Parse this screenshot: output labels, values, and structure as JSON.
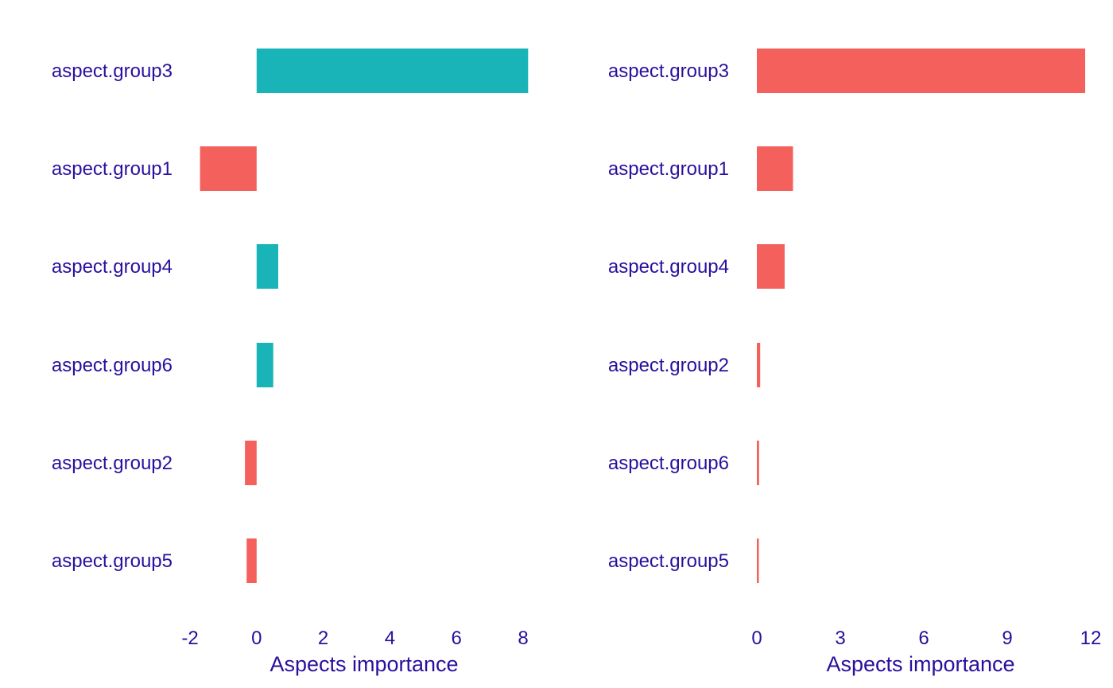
{
  "text_color": "#2a0f9e",
  "chart_data": [
    {
      "type": "bar",
      "orientation": "horizontal",
      "categories": [
        "aspect.group3",
        "aspect.group1",
        "aspect.group4",
        "aspect.group6",
        "aspect.group2",
        "aspect.group5"
      ],
      "values": [
        8.15,
        -1.7,
        0.65,
        0.5,
        -0.35,
        -0.3
      ],
      "xlabel": "Aspects importance",
      "ylabel": "",
      "xlim": [
        -2,
        8.4
      ],
      "xticks": [
        "-2",
        "0",
        "2",
        "4",
        "6",
        "8"
      ],
      "grid": false,
      "legend": "none",
      "colors": {
        "positive": "#18b4b7",
        "negative": "#f4615c"
      }
    },
    {
      "type": "bar",
      "orientation": "horizontal",
      "categories": [
        "aspect.group3",
        "aspect.group1",
        "aspect.group4",
        "aspect.group2",
        "aspect.group6",
        "aspect.group5"
      ],
      "values": [
        11.8,
        1.3,
        1.0,
        0.12,
        0.08,
        0.07
      ],
      "xlabel": "Aspects importance",
      "ylabel": "",
      "xlim": [
        0,
        12
      ],
      "xticks": [
        "0",
        "3",
        "6",
        "9",
        "12"
      ],
      "grid": false,
      "legend": "none",
      "colors": {
        "positive": "#f4615c",
        "negative": "#f4615c"
      }
    }
  ]
}
